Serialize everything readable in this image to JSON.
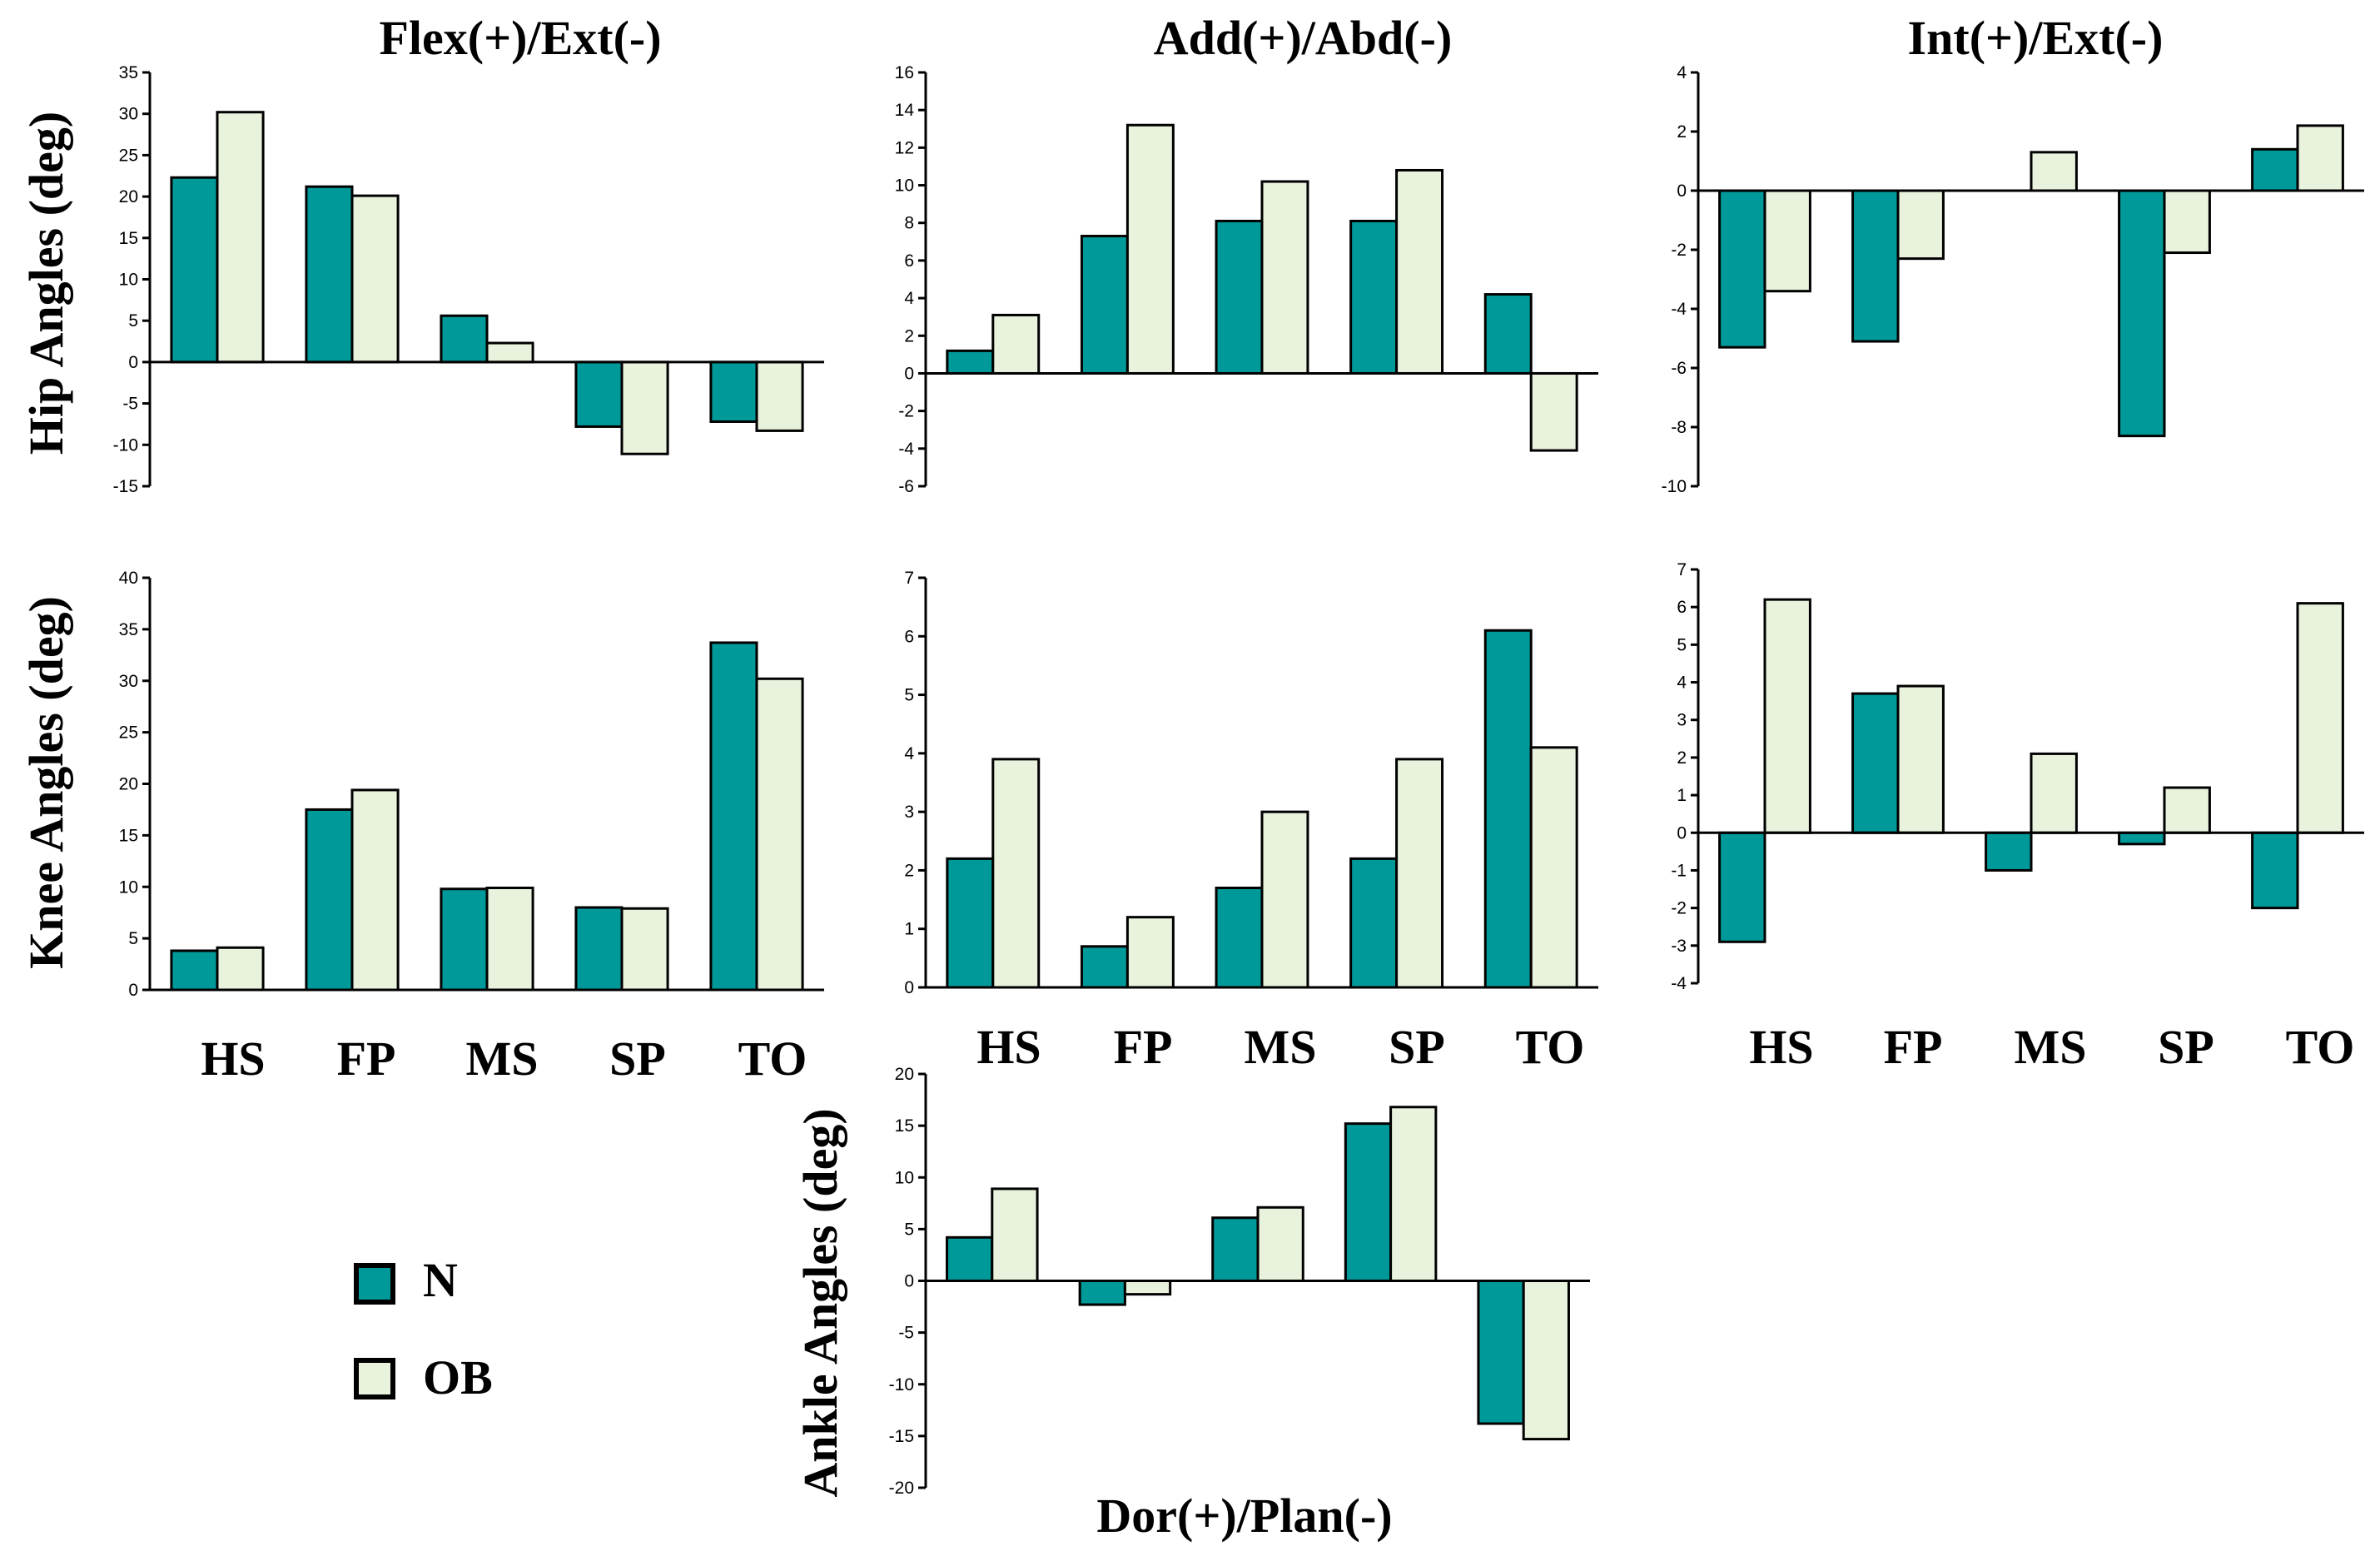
{
  "colors": {
    "N": "#009999",
    "OB": "#e8f2dc",
    "stroke": "#000000"
  },
  "column_titles": [
    "Flex(+)/Ext(-)",
    "Add(+)/Abd(-)",
    "Int(+)/Ext(-)"
  ],
  "bottom_title": "Dor(+)/Plan(-)",
  "row_labels": {
    "hip": "Hip Angles (deg)",
    "knee": "Knee Angles (deg)",
    "ankle": "Ankle Angles (deg)"
  },
  "categories": [
    "HS",
    "FP",
    "MS",
    "SP",
    "TO"
  ],
  "legend": [
    {
      "name": "N",
      "color": "#009999"
    },
    {
      "name": "OB",
      "color": "#e8f2dc"
    }
  ],
  "chart_data": [
    {
      "id": "hip-flex",
      "type": "bar",
      "title": "Flex(+)/Ext(-)",
      "ylabel": "Hip Angles (deg)",
      "categories": [
        "HS",
        "FP",
        "MS",
        "SP",
        "TO"
      ],
      "ylim": [
        -15,
        35
      ],
      "ticks": [
        35,
        30,
        25,
        20,
        15,
        10,
        5,
        0,
        -5,
        -10,
        -15
      ],
      "series": [
        {
          "name": "N",
          "values": [
            22.3,
            21.2,
            5.6,
            -7.8,
            -7.2
          ]
        },
        {
          "name": "OB",
          "values": [
            30.2,
            20.1,
            2.3,
            -11.1,
            -8.3
          ]
        }
      ]
    },
    {
      "id": "hip-add",
      "type": "bar",
      "title": "Add(+)/Abd(-)",
      "ylabel": "",
      "categories": [
        "HS",
        "FP",
        "MS",
        "SP",
        "TO"
      ],
      "ylim": [
        -6,
        16
      ],
      "ticks": [
        16,
        14,
        12,
        10,
        8,
        6,
        4,
        2,
        0,
        -2,
        -4,
        -6
      ],
      "series": [
        {
          "name": "N",
          "values": [
            1.2,
            7.3,
            8.1,
            8.1,
            4.2
          ]
        },
        {
          "name": "OB",
          "values": [
            3.1,
            13.2,
            10.2,
            10.8,
            -4.1
          ]
        }
      ]
    },
    {
      "id": "hip-int",
      "type": "bar",
      "title": "Int(+)/Ext(-)",
      "ylabel": "",
      "categories": [
        "HS",
        "FP",
        "MS",
        "SP",
        "TO"
      ],
      "ylim": [
        -10,
        4
      ],
      "ticks": [
        4,
        2,
        0,
        -2,
        -4,
        -6,
        -8,
        -10
      ],
      "series": [
        {
          "name": "N",
          "values": [
            -5.3,
            -5.1,
            0,
            -8.3,
            1.4
          ]
        },
        {
          "name": "OB",
          "values": [
            -3.4,
            -2.3,
            1.3,
            -2.1,
            2.2
          ]
        }
      ]
    },
    {
      "id": "knee-flex",
      "type": "bar",
      "title": "",
      "ylabel": "Knee Angles (deg)",
      "categories": [
        "HS",
        "FP",
        "MS",
        "SP",
        "TO"
      ],
      "ylim": [
        0,
        40
      ],
      "ticks": [
        40,
        35,
        30,
        25,
        20,
        15,
        10,
        5,
        0
      ],
      "series": [
        {
          "name": "N",
          "values": [
            3.8,
            17.5,
            9.8,
            8.0,
            33.7
          ]
        },
        {
          "name": "OB",
          "values": [
            4.1,
            19.4,
            9.9,
            7.9,
            30.2
          ]
        }
      ]
    },
    {
      "id": "knee-add",
      "type": "bar",
      "title": "",
      "ylabel": "",
      "categories": [
        "HS",
        "FP",
        "MS",
        "SP",
        "TO"
      ],
      "ylim": [
        0,
        7
      ],
      "ticks": [
        7,
        6,
        5,
        4,
        3,
        2,
        1,
        0
      ],
      "series": [
        {
          "name": "N",
          "values": [
            2.2,
            0.7,
            1.7,
            2.2,
            6.1
          ]
        },
        {
          "name": "OB",
          "values": [
            3.9,
            1.2,
            3.0,
            3.9,
            4.1
          ]
        }
      ]
    },
    {
      "id": "knee-int",
      "type": "bar",
      "title": "",
      "ylabel": "",
      "categories": [
        "HS",
        "FP",
        "MS",
        "SP",
        "TO"
      ],
      "ylim": [
        -4,
        7
      ],
      "ticks": [
        7,
        6,
        5,
        4,
        3,
        2,
        1,
        0,
        -1,
        -2,
        -3,
        -4
      ],
      "series": [
        {
          "name": "N",
          "values": [
            -2.9,
            3.7,
            -1.0,
            -0.3,
            -2.0
          ]
        },
        {
          "name": "OB",
          "values": [
            6.2,
            3.9,
            2.1,
            1.2,
            6.1
          ]
        }
      ]
    },
    {
      "id": "ankle-dor",
      "type": "bar",
      "title": "Dor(+)/Plan(-)",
      "ylabel": "Ankle Angles (deg)",
      "categories": [
        "HS",
        "FP",
        "MS",
        "SP",
        "TO"
      ],
      "ylim": [
        -20,
        20
      ],
      "ticks": [
        20,
        15,
        10,
        5,
        0,
        -5,
        -10,
        -15,
        -20
      ],
      "series": [
        {
          "name": "N",
          "values": [
            4.2,
            -2.3,
            6.1,
            15.2,
            -13.8
          ]
        },
        {
          "name": "OB",
          "values": [
            8.9,
            -1.3,
            7.1,
            16.8,
            -15.3
          ]
        }
      ]
    }
  ]
}
